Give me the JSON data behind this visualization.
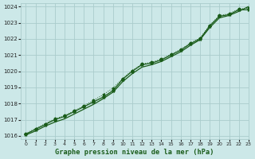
{
  "title": "Graphe pression niveau de la mer (hPa)",
  "bg_color": "#cce8e8",
  "grid_color": "#aacccc",
  "line_color": "#1a5c1a",
  "marker_color": "#1a5c1a",
  "xlim": [
    -0.5,
    23
  ],
  "ylim": [
    1015.8,
    1024.2
  ],
  "xticks": [
    0,
    1,
    2,
    3,
    4,
    5,
    6,
    7,
    8,
    9,
    10,
    11,
    12,
    13,
    14,
    15,
    16,
    17,
    18,
    19,
    20,
    21,
    22,
    23
  ],
  "yticks": [
    1016,
    1017,
    1018,
    1019,
    1020,
    1021,
    1022,
    1023,
    1024
  ],
  "series1_x": [
    0,
    1,
    2,
    3,
    4,
    5,
    6,
    7,
    8,
    9,
    10,
    11,
    12,
    13,
    14,
    15,
    16,
    17,
    18,
    19,
    20,
    21,
    22,
    23
  ],
  "series1_y": [
    1016.1,
    1016.4,
    1016.7,
    1017.0,
    1017.2,
    1017.5,
    1017.8,
    1018.1,
    1018.4,
    1018.8,
    1019.5,
    1020.0,
    1020.4,
    1020.5,
    1020.7,
    1021.0,
    1021.3,
    1021.7,
    1022.0,
    1022.8,
    1023.4,
    1023.5,
    1023.8,
    1023.8
  ],
  "series2_x": [
    0,
    1,
    2,
    3,
    4,
    5,
    6,
    7,
    8,
    9,
    10,
    11,
    12,
    13,
    14,
    15,
    16,
    17,
    18,
    19,
    20,
    21,
    22,
    23
  ],
  "series2_y": [
    1016.15,
    1016.45,
    1016.75,
    1017.05,
    1017.25,
    1017.55,
    1017.85,
    1018.2,
    1018.55,
    1018.95,
    1019.55,
    1020.05,
    1020.45,
    1020.55,
    1020.75,
    1021.05,
    1021.35,
    1021.75,
    1022.05,
    1022.85,
    1023.45,
    1023.55,
    1023.85,
    1023.9
  ],
  "series3_x": [
    0,
    1,
    2,
    3,
    4,
    5,
    6,
    7,
    8,
    9,
    10,
    11,
    12,
    13,
    14,
    15,
    16,
    17,
    18,
    19,
    20,
    21,
    22,
    23
  ],
  "series3_y": [
    1016.05,
    1016.3,
    1016.6,
    1016.85,
    1017.05,
    1017.35,
    1017.65,
    1017.95,
    1018.3,
    1018.7,
    1019.35,
    1019.85,
    1020.25,
    1020.4,
    1020.6,
    1020.9,
    1021.2,
    1021.6,
    1021.95,
    1022.7,
    1023.3,
    1023.45,
    1023.7,
    1024.0
  ]
}
